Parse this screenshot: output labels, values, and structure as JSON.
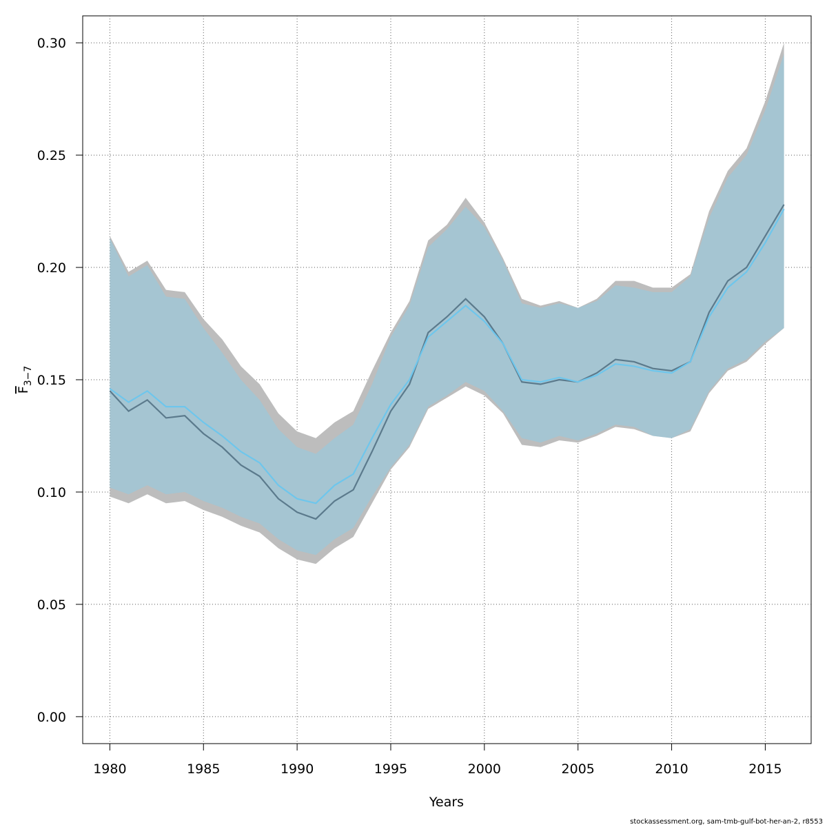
{
  "chart_data": {
    "type": "line",
    "xlabel": "Years",
    "ylabel_main": "F",
    "ylabel_sub": "3−7",
    "xlim": [
      1978.6,
      1980.0
    ],
    "xlim_full": [
      1978.55,
      2017.45
    ],
    "ylim": [
      -0.012,
      0.312
    ],
    "x_ticks": [
      1980,
      1985,
      1990,
      1995,
      2000,
      2005,
      2010,
      2015
    ],
    "y_ticks": [
      0.0,
      0.05,
      0.1,
      0.15,
      0.2,
      0.25,
      0.3
    ],
    "y_tick_labels": [
      "0.00",
      "0.05",
      "0.10",
      "0.15",
      "0.20",
      "0.25",
      "0.30"
    ],
    "grid": true,
    "x": [
      1980,
      1981,
      1982,
      1983,
      1984,
      1985,
      1986,
      1987,
      1988,
      1989,
      1990,
      1991,
      1992,
      1993,
      1994,
      1995,
      1996,
      1997,
      1998,
      1999,
      2000,
      2001,
      2002,
      2003,
      2004,
      2005,
      2006,
      2007,
      2008,
      2009,
      2010,
      2011,
      2012,
      2013,
      2014,
      2015,
      2016
    ],
    "series": [
      {
        "values": [
          0.145,
          0.136,
          0.141,
          0.133,
          0.134,
          0.126,
          0.12,
          0.112,
          0.107,
          0.097,
          0.091,
          0.088,
          0.096,
          0.101,
          0.118,
          0.136,
          0.148,
          0.171,
          0.178,
          0.186,
          0.178,
          0.166,
          0.149,
          0.148,
          0.15,
          0.149,
          0.153,
          0.159,
          0.158,
          0.155,
          0.154,
          0.158,
          0.18,
          0.194,
          0.2,
          0.214,
          0.228
        ],
        "lower": [
          0.098,
          0.095,
          0.099,
          0.095,
          0.096,
          0.092,
          0.089,
          0.085,
          0.082,
          0.075,
          0.07,
          0.068,
          0.075,
          0.08,
          0.095,
          0.11,
          0.12,
          0.137,
          0.142,
          0.147,
          0.143,
          0.135,
          0.121,
          0.12,
          0.123,
          0.122,
          0.125,
          0.129,
          0.128,
          0.125,
          0.124,
          0.127,
          0.144,
          0.154,
          0.158,
          0.166,
          0.173
        ],
        "upper": [
          0.214,
          0.198,
          0.203,
          0.19,
          0.189,
          0.177,
          0.168,
          0.156,
          0.148,
          0.135,
          0.127,
          0.124,
          0.131,
          0.136,
          0.154,
          0.171,
          0.185,
          0.212,
          0.219,
          0.231,
          0.22,
          0.204,
          0.186,
          0.183,
          0.185,
          0.182,
          0.186,
          0.194,
          0.194,
          0.191,
          0.191,
          0.197,
          0.225,
          0.243,
          0.253,
          0.274,
          0.3
        ],
        "line_color": "#5b7a8c",
        "band_color": "#bdbdbd"
      },
      {
        "values": [
          0.146,
          0.14,
          0.145,
          0.138,
          0.138,
          0.131,
          0.125,
          0.118,
          0.113,
          0.103,
          0.097,
          0.095,
          0.103,
          0.108,
          0.124,
          0.139,
          0.15,
          0.169,
          0.176,
          0.183,
          0.176,
          0.166,
          0.15,
          0.149,
          0.151,
          0.149,
          0.152,
          0.157,
          0.156,
          0.154,
          0.153,
          0.158,
          0.178,
          0.191,
          0.198,
          0.211,
          0.226
        ],
        "lower": [
          0.102,
          0.099,
          0.103,
          0.099,
          0.1,
          0.096,
          0.093,
          0.089,
          0.086,
          0.079,
          0.074,
          0.072,
          0.079,
          0.084,
          0.098,
          0.111,
          0.121,
          0.138,
          0.143,
          0.149,
          0.145,
          0.136,
          0.124,
          0.122,
          0.125,
          0.123,
          0.126,
          0.13,
          0.129,
          0.125,
          0.124,
          0.128,
          0.145,
          0.155,
          0.159,
          0.167,
          0.173
        ],
        "upper": [
          0.213,
          0.196,
          0.201,
          0.187,
          0.186,
          0.173,
          0.162,
          0.15,
          0.141,
          0.128,
          0.12,
          0.117,
          0.124,
          0.13,
          0.148,
          0.169,
          0.183,
          0.209,
          0.217,
          0.227,
          0.218,
          0.203,
          0.184,
          0.182,
          0.184,
          0.182,
          0.185,
          0.192,
          0.191,
          0.189,
          0.189,
          0.196,
          0.222,
          0.24,
          0.25,
          0.27,
          0.295
        ],
        "line_color": "#6ec6ec",
        "band_color": "#87ceeb"
      }
    ]
  },
  "footer_text": "stockassessment.org, sam-tmb-gulf-bot-her-an-2, r8553"
}
